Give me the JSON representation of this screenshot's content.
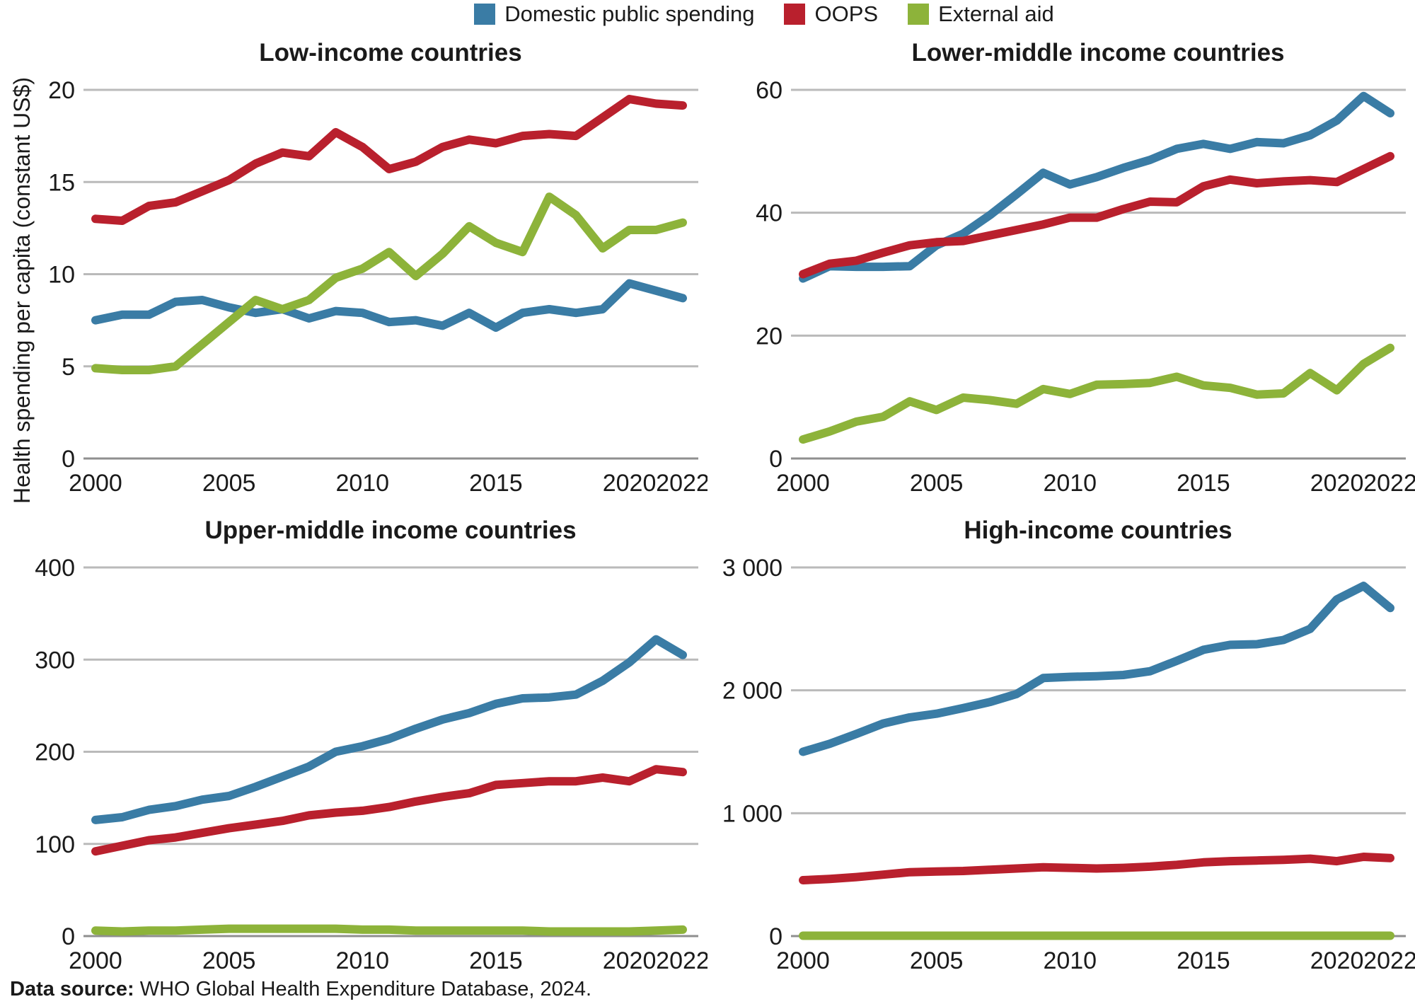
{
  "ylabel": "Health spending per capita (constant US$)",
  "footer": {
    "label": "Data source:",
    "text": " WHO Global Health Expenditure Database, 2024."
  },
  "colors": {
    "domestic": "#3a7ca5",
    "oops": "#b9202d",
    "external": "#8db33a",
    "gridline": "#bababa",
    "baseline": "#8f8f8f",
    "text": "#1a1a1a"
  },
  "legend": {
    "items": [
      {
        "label": "Domestic public spending",
        "color": "#3a7ca5"
      },
      {
        "label": "OOPS",
        "color": "#b9202d"
      },
      {
        "label": "External aid",
        "color": "#8db33a"
      }
    ]
  },
  "chart_data": [
    {
      "type": "line",
      "title": "Low-income countries",
      "x": [
        2000,
        2001,
        2002,
        2003,
        2004,
        2005,
        2006,
        2007,
        2008,
        2009,
        2010,
        2011,
        2012,
        2013,
        2014,
        2015,
        2016,
        2017,
        2018,
        2019,
        2020,
        2021,
        2022
      ],
      "xticks": [
        2000,
        2005,
        2010,
        2015,
        2020,
        2022
      ],
      "xtick_labels": [
        "2000",
        "2005",
        "2010",
        "2015",
        "2020",
        "2022"
      ],
      "ylim": [
        0,
        20
      ],
      "yticks": [
        0,
        5,
        10,
        15,
        20
      ],
      "ytick_labels": [
        "0",
        "5",
        "10",
        "15",
        "20"
      ],
      "grid": true,
      "legend_position": "top",
      "series": [
        {
          "name": "Domestic public spending",
          "color": "#3a7ca5",
          "values": [
            7.5,
            7.8,
            7.8,
            8.5,
            8.6,
            8.2,
            7.9,
            8.1,
            7.6,
            8.0,
            7.9,
            7.4,
            7.5,
            7.2,
            7.9,
            7.1,
            7.9,
            8.1,
            7.9,
            8.1,
            9.5,
            9.1,
            8.7
          ]
        },
        {
          "name": "OOPS",
          "color": "#b9202d",
          "values": [
            13.0,
            12.9,
            13.7,
            13.9,
            14.5,
            15.1,
            16.0,
            16.6,
            16.4,
            17.7,
            16.9,
            15.7,
            16.1,
            16.9,
            17.3,
            17.1,
            17.5,
            17.6,
            17.5,
            18.5,
            19.5,
            19.25,
            19.15
          ]
        },
        {
          "name": "External aid",
          "color": "#8db33a",
          "values": [
            4.9,
            4.8,
            4.8,
            5.0,
            6.2,
            7.4,
            8.6,
            8.1,
            8.6,
            9.8,
            10.3,
            11.2,
            9.9,
            11.1,
            12.6,
            11.7,
            11.2,
            14.2,
            13.2,
            11.4,
            12.4,
            12.4,
            12.8
          ]
        }
      ]
    },
    {
      "type": "line",
      "title": "Lower-middle income countries",
      "x": [
        2000,
        2001,
        2002,
        2003,
        2004,
        2005,
        2006,
        2007,
        2008,
        2009,
        2010,
        2011,
        2012,
        2013,
        2014,
        2015,
        2016,
        2017,
        2018,
        2019,
        2020,
        2021,
        2022
      ],
      "xticks": [
        2000,
        2005,
        2010,
        2015,
        2020,
        2022
      ],
      "xtick_labels": [
        "2000",
        "2005",
        "2010",
        "2015",
        "2020",
        "2022"
      ],
      "ylim": [
        0,
        60
      ],
      "yticks": [
        0,
        20,
        40,
        60
      ],
      "ytick_labels": [
        "0",
        "20",
        "40",
        "60"
      ],
      "grid": true,
      "legend_position": "top",
      "series": [
        {
          "name": "Domestic public spending",
          "color": "#3a7ca5",
          "values": [
            29.3,
            31.3,
            31.2,
            31.2,
            31.3,
            34.7,
            36.6,
            39.6,
            43.0,
            46.5,
            44.6,
            45.8,
            47.3,
            48.6,
            50.4,
            51.2,
            50.4,
            51.5,
            51.3,
            52.6,
            55.0,
            59.0,
            56.2
          ]
        },
        {
          "name": "OOPS",
          "color": "#b9202d",
          "values": [
            30.0,
            31.7,
            32.2,
            33.5,
            34.7,
            35.2,
            35.4,
            36.3,
            37.2,
            38.1,
            39.2,
            39.2,
            40.6,
            41.8,
            41.7,
            44.3,
            45.4,
            44.8,
            45.1,
            45.3,
            45.0,
            47.1,
            49.2
          ]
        },
        {
          "name": "External aid",
          "color": "#8db33a",
          "values": [
            3.1,
            4.4,
            6.0,
            6.8,
            9.3,
            7.9,
            9.9,
            9.5,
            8.9,
            11.3,
            10.5,
            12.0,
            12.1,
            12.3,
            13.3,
            11.9,
            11.5,
            10.4,
            10.6,
            13.9,
            11.1,
            15.4,
            18.0
          ]
        }
      ]
    },
    {
      "type": "line",
      "title": "Upper-middle income countries",
      "x": [
        2000,
        2001,
        2002,
        2003,
        2004,
        2005,
        2006,
        2007,
        2008,
        2009,
        2010,
        2011,
        2012,
        2013,
        2014,
        2015,
        2016,
        2017,
        2018,
        2019,
        2020,
        2021,
        2022
      ],
      "xticks": [
        2000,
        2005,
        2010,
        2015,
        2020,
        2022
      ],
      "xtick_labels": [
        "2000",
        "2005",
        "2010",
        "2015",
        "2020",
        "2022"
      ],
      "ylim": [
        0,
        400
      ],
      "yticks": [
        0,
        100,
        200,
        300,
        400
      ],
      "ytick_labels": [
        "0",
        "100",
        "200",
        "300",
        "400"
      ],
      "grid": true,
      "legend_position": "top",
      "series": [
        {
          "name": "Domestic public spending",
          "color": "#3a7ca5",
          "values": [
            126,
            129,
            137,
            141,
            148,
            152,
            162,
            173,
            184,
            200,
            206,
            214,
            225,
            235,
            242,
            252,
            258,
            259,
            262,
            277,
            297,
            322,
            305
          ]
        },
        {
          "name": "OOPS",
          "color": "#b9202d",
          "values": [
            92,
            98,
            104,
            107,
            112,
            117,
            121,
            125,
            131,
            134,
            136,
            140,
            146,
            151,
            155,
            164,
            166,
            168,
            168,
            172,
            168,
            181,
            178
          ]
        },
        {
          "name": "External aid",
          "color": "#8db33a",
          "values": [
            6,
            5,
            6,
            6,
            7,
            8,
            8,
            8,
            8,
            8,
            7,
            7,
            6,
            6,
            6,
            6,
            6,
            5,
            5,
            5,
            5,
            6,
            7
          ]
        }
      ]
    },
    {
      "type": "line",
      "title": "High-income countries",
      "x": [
        2000,
        2001,
        2002,
        2003,
        2004,
        2005,
        2006,
        2007,
        2008,
        2009,
        2010,
        2011,
        2012,
        2013,
        2014,
        2015,
        2016,
        2017,
        2018,
        2019,
        2020,
        2021,
        2022
      ],
      "xticks": [
        2000,
        2005,
        2010,
        2015,
        2020,
        2022
      ],
      "xtick_labels": [
        "2000",
        "2005",
        "2010",
        "2015",
        "2020",
        "2022"
      ],
      "ylim": [
        0,
        3000
      ],
      "yticks": [
        0,
        1000,
        2000,
        3000
      ],
      "ytick_labels": [
        "0",
        "1 000",
        "2 000",
        "3 000"
      ],
      "grid": true,
      "legend_position": "top",
      "series": [
        {
          "name": "Domestic public spending",
          "color": "#3a7ca5",
          "values": [
            1500,
            1565,
            1645,
            1730,
            1780,
            1810,
            1855,
            1905,
            1970,
            2100,
            2110,
            2115,
            2125,
            2155,
            2240,
            2330,
            2370,
            2375,
            2410,
            2500,
            2740,
            2850,
            2670
          ]
        },
        {
          "name": "OOPS",
          "color": "#b9202d",
          "values": [
            455,
            465,
            480,
            500,
            520,
            525,
            530,
            540,
            550,
            560,
            555,
            550,
            555,
            565,
            580,
            600,
            610,
            615,
            620,
            630,
            610,
            645,
            635
          ]
        },
        {
          "name": "External aid",
          "color": "#8db33a",
          "values": [
            3,
            3,
            3,
            3,
            3,
            3,
            3,
            3,
            3,
            3,
            3,
            3,
            3,
            3,
            3,
            3,
            3,
            3,
            3,
            3,
            3,
            3,
            3
          ]
        }
      ]
    }
  ]
}
